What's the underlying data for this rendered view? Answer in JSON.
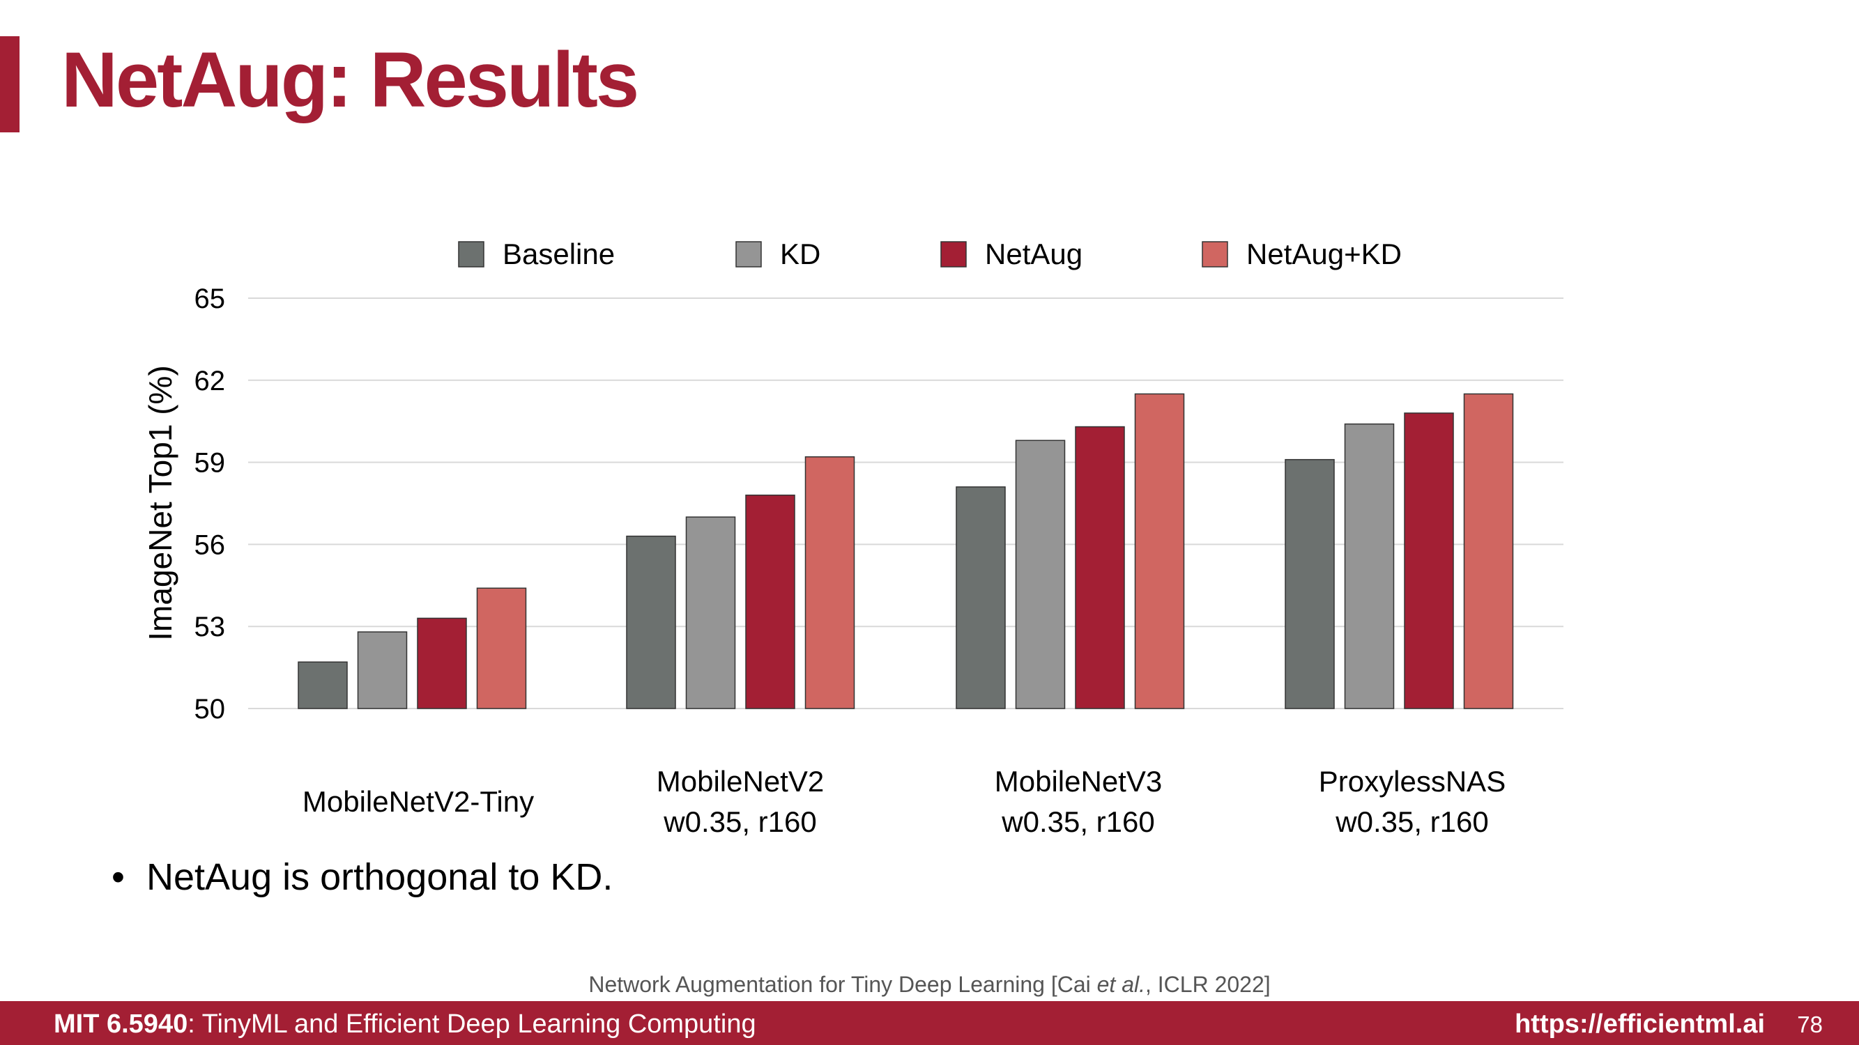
{
  "slide": {
    "title": "NetAug: Results",
    "bullet": "NetAug is orthogonal to KD.",
    "citation_prefix": "Network Augmentation for Tiny Deep Learning [Cai ",
    "citation_italic": "et al.",
    "citation_suffix": ", ICLR 2022]",
    "footer_course_bold": "MIT 6.5940",
    "footer_course_rest": ": TinyML and Efficient Deep Learning Computing",
    "footer_url": "https://efficientml.ai",
    "page_number": "78"
  },
  "colors": {
    "brand": "#a31f34",
    "Baseline": "#6c716f",
    "KD": "#959595",
    "NetAug": "#a31f34",
    "NetAug+KD": "#d06661"
  },
  "chart_data": {
    "type": "bar",
    "categories": [
      [
        "MobileNetV2-Tiny"
      ],
      [
        "MobileNetV2",
        "w0.35, r160"
      ],
      [
        "MobileNetV3",
        "w0.35, r160"
      ],
      [
        "ProxylessNAS",
        "w0.35, r160"
      ]
    ],
    "series": [
      {
        "name": "Baseline",
        "values": [
          51.7,
          56.3,
          58.1,
          59.1
        ]
      },
      {
        "name": "KD",
        "values": [
          52.8,
          57.0,
          59.8,
          60.4
        ]
      },
      {
        "name": "NetAug",
        "values": [
          53.3,
          57.8,
          60.3,
          60.8
        ]
      },
      {
        "name": "NetAug+KD",
        "values": [
          54.4,
          59.2,
          61.5,
          61.5
        ]
      }
    ],
    "ylabel": "ImageNet Top1 (%)",
    "ylim": [
      50,
      65
    ],
    "yticks": [
      50,
      53,
      56,
      59,
      62,
      65
    ],
    "grid": true,
    "legend": "top"
  }
}
